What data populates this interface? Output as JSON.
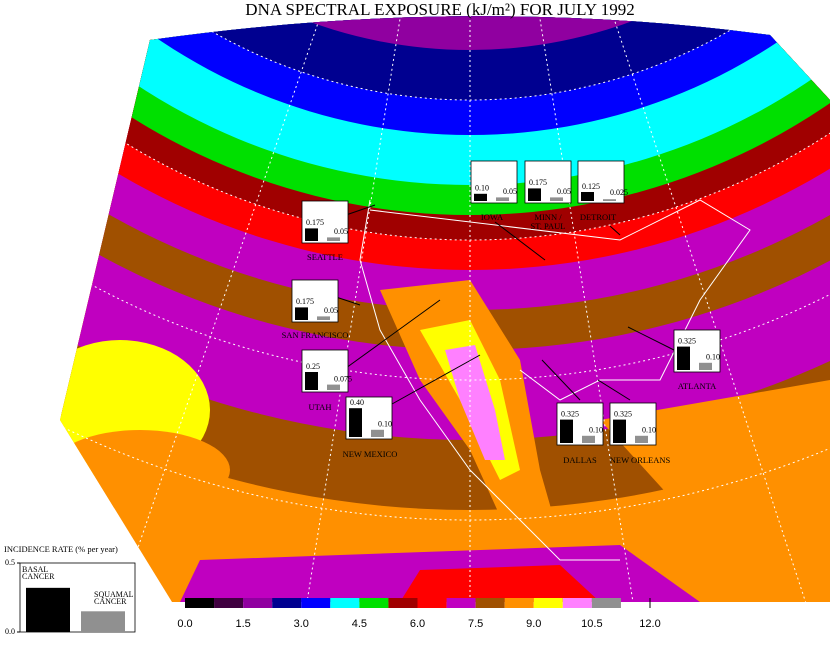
{
  "title": "DNA SPECTRAL EXPOSURE (kJ/m²) FOR JULY 1992",
  "colorbar": {
    "colors": [
      "#000000",
      "#400040",
      "#9000a0",
      "#000090",
      "#0000ff",
      "#00ffff",
      "#00e000",
      "#a00000",
      "#ff0000",
      "#c000c0",
      "#a05000",
      "#ff9000",
      "#ffff00",
      "#ff80ff",
      "#909090"
    ],
    "lim": [
      0,
      12
    ],
    "ticks": [
      {
        "value": 0,
        "label": "0.0"
      },
      {
        "value": 1.5,
        "label": "1.5"
      },
      {
        "value": 3,
        "label": "3.0"
      },
      {
        "value": 4.5,
        "label": "4.5"
      },
      {
        "value": 6,
        "label": "6.0"
      },
      {
        "value": 7.5,
        "label": "7.5"
      },
      {
        "value": 9,
        "label": "9.0"
      },
      {
        "value": 10.5,
        "label": "10.5"
      },
      {
        "value": 12,
        "label": "12.0"
      }
    ]
  },
  "legend": {
    "title": "INCIDENCE RATE (% per year)",
    "ylim": [
      0,
      0.5
    ],
    "yticks": [
      {
        "value": 0,
        "label": "0.0"
      },
      {
        "value": 0.5,
        "label": "0.5"
      }
    ],
    "basal_label": [
      "BASAL",
      "CANCER"
    ],
    "squamal_label": [
      "SQUAMAL",
      "CANCER"
    ],
    "values": [
      0.32,
      0.15
    ],
    "basal_color": "#000000",
    "squamal_color": "#909090"
  },
  "cities": [
    {
      "name": [
        "SEATTLE"
      ],
      "values": [
        0.175,
        0.05
      ],
      "value_labels": [
        "0.175",
        "0.05"
      ]
    },
    {
      "name": [
        "SAN FRANCISCO"
      ],
      "values": [
        0.175,
        0.05
      ],
      "value_labels": [
        "0.175",
        "0.05"
      ]
    },
    {
      "name": [
        "UTAH"
      ],
      "values": [
        0.25,
        0.075
      ],
      "value_labels": [
        "0.25",
        "0.075"
      ]
    },
    {
      "name": [
        "NEW MEXICO"
      ],
      "values": [
        0.4,
        0.1
      ],
      "value_labels": [
        "0.40",
        "0.10"
      ]
    },
    {
      "name": [
        "IOWA"
      ],
      "values": [
        0.1,
        0.05
      ],
      "value_labels": [
        "0.10",
        "0.05"
      ]
    },
    {
      "name": [
        "MINN /",
        "ST. PAUL"
      ],
      "values": [
        0.175,
        0.05
      ],
      "value_labels": [
        "0.175",
        "0.05"
      ]
    },
    {
      "name": [
        "DETROIT"
      ],
      "values": [
        0.125,
        0.025
      ],
      "value_labels": [
        "0.125",
        "0.025"
      ]
    },
    {
      "name": [
        "ATLANTA"
      ],
      "values": [
        0.325,
        0.1
      ],
      "value_labels": [
        "0.325",
        "0.10"
      ]
    },
    {
      "name": [
        "DALLAS"
      ],
      "values": [
        0.325,
        0.1
      ],
      "value_labels": [
        "0.325",
        "0.10"
      ]
    },
    {
      "name": [
        "NEW ORLEANS"
      ],
      "values": [
        0.325,
        0.1
      ],
      "value_labels": [
        "0.325",
        "0.10"
      ]
    }
  ]
}
